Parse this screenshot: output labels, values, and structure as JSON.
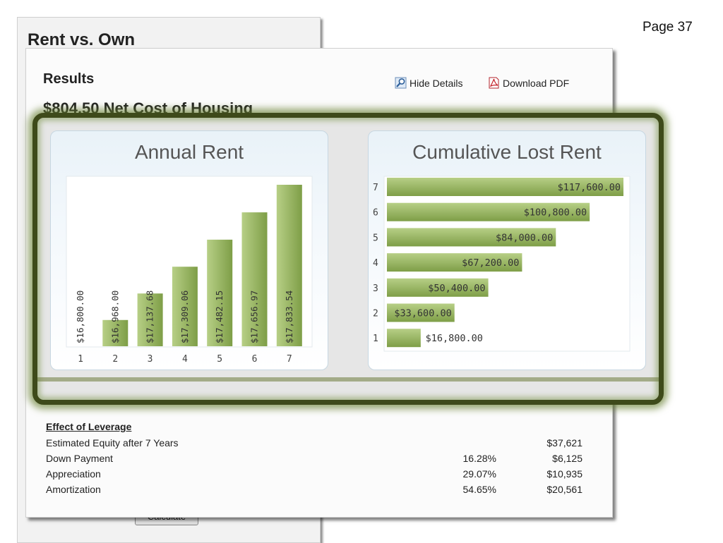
{
  "page": {
    "number_label": "Page 37"
  },
  "back_panel": {
    "title": "Rent vs. Own",
    "calculate_label": "Calculate"
  },
  "results": {
    "title": "Results",
    "net_cost": "$804.50 Net Cost of Housing",
    "hide_details_label": "Hide Details",
    "download_pdf_label": "Download PDF",
    "icons": {
      "hide_details": "magnifier-icon",
      "download_pdf": "pdf-icon"
    }
  },
  "leverage": {
    "title": "Effect of Leverage",
    "rows": [
      {
        "label": "Estimated Equity after 7 Years",
        "pct": "",
        "value": "$37,621"
      },
      {
        "label": "Down Payment",
        "pct": "16.28%",
        "value": "$6,125"
      },
      {
        "label": "Appreciation",
        "pct": "29.07%",
        "value": "$10,935"
      },
      {
        "label": "Amortization",
        "pct": "54.65%",
        "value": "$20,561"
      }
    ]
  },
  "colors": {
    "bar": "#95b561",
    "bar_dark": "#7e9e47",
    "highlight": "#3e4a1a"
  },
  "chart_data": [
    {
      "type": "bar",
      "title": "Annual Rent",
      "categories": [
        "1",
        "2",
        "3",
        "4",
        "5",
        "6",
        "7"
      ],
      "values": [
        16800.0,
        16968.0,
        17137.68,
        17309.06,
        17482.15,
        17656.97,
        17833.54
      ],
      "labels": [
        "$16,800.00",
        "$16,968.00",
        "$17,137.68",
        "$17,309.06",
        "$17,482.15",
        "$17,656.97",
        "$17,833.54"
      ],
      "ylim": [
        16800,
        17833.54
      ],
      "grid": false
    },
    {
      "type": "bar",
      "orientation": "horizontal",
      "title": "Cumulative Lost Rent",
      "categories": [
        "7",
        "6",
        "5",
        "4",
        "3",
        "2",
        "1"
      ],
      "values": [
        117600,
        100800,
        84000,
        67200,
        50400,
        33600,
        16800
      ],
      "labels": [
        "$117,600.00",
        "$100,800.00",
        "$84,000.00",
        "$67,200.00",
        "$50,400.00",
        "$33,600.00",
        "$16,800.00"
      ],
      "xlim": [
        0,
        117600
      ],
      "grid": false
    }
  ]
}
